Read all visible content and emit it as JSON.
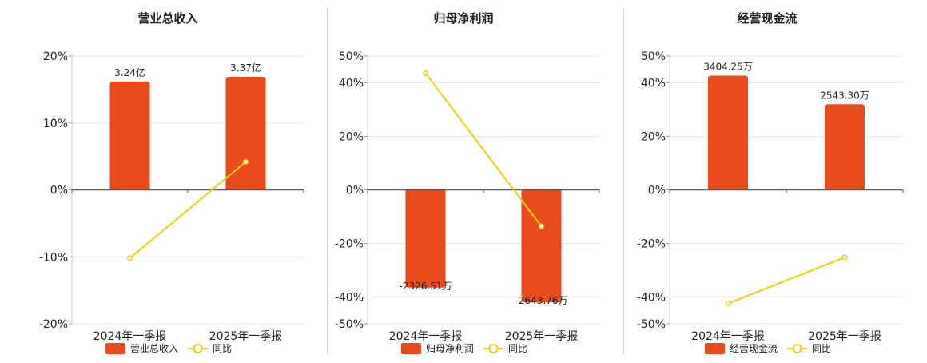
{
  "colors": {
    "bar": "#e84b1c",
    "line": "#f2cf0e",
    "zero_axis": "#555a66",
    "grid": "#e6e6e6",
    "divider": "#b0b0b0",
    "text": "#222222"
  },
  "chart_data": [
    {
      "type": "bar",
      "title": "营业总收入",
      "categories": [
        "2024年一季报",
        "2025年一季报"
      ],
      "ylim": [
        -20,
        20
      ],
      "yticks": [
        -20,
        -10,
        0,
        10,
        20
      ],
      "ytick_labels": [
        "-20%",
        "-10%",
        "0%",
        "10%",
        "20%"
      ],
      "series": [
        {
          "name": "营业总收入",
          "kind": "bar",
          "values": [
            16.2,
            16.9
          ],
          "data_labels": [
            "3.24亿",
            "3.37亿"
          ]
        },
        {
          "name": "同比",
          "kind": "line",
          "values": [
            -10.2,
            4.2
          ]
        }
      ],
      "legend": {
        "position": "bottom",
        "items": [
          "营业总收入",
          "同比"
        ]
      },
      "grid": true
    },
    {
      "type": "bar",
      "title": "归母净利润",
      "categories": [
        "2024年一季报",
        "2025年一季报"
      ],
      "ylim": [
        -50,
        50
      ],
      "yticks": [
        -50,
        -40,
        -20,
        0,
        20,
        40,
        50
      ],
      "ytick_labels": [
        "-50%",
        "-40%",
        "-20%",
        "0%",
        "20%",
        "40%",
        "50%"
      ],
      "series": [
        {
          "name": "归母净利润",
          "kind": "bar",
          "values": [
            -36.5,
            -42
          ],
          "data_labels": [
            "-2326.51万",
            "-2643.76万"
          ]
        },
        {
          "name": "同比",
          "kind": "line",
          "values": [
            43.6,
            -13.6
          ]
        }
      ],
      "legend": {
        "position": "bottom",
        "items": [
          "归母净利润",
          "同比"
        ]
      },
      "grid": true
    },
    {
      "type": "bar",
      "title": "经营现金流",
      "categories": [
        "2024年一季报",
        "2025年一季报"
      ],
      "ylim": [
        -50,
        50
      ],
      "yticks": [
        -50,
        -40,
        -20,
        0,
        20,
        40,
        50
      ],
      "ytick_labels": [
        "-50%",
        "-40%",
        "-20%",
        "0%",
        "20%",
        "40%",
        "50%"
      ],
      "series": [
        {
          "name": "经营现金流",
          "kind": "bar",
          "values": [
            42.7,
            32
          ],
          "data_labels": [
            "3404.25万",
            "2543.30万"
          ]
        },
        {
          "name": "同比",
          "kind": "line",
          "values": [
            -42.4,
            -25.2
          ]
        }
      ],
      "legend": {
        "position": "bottom",
        "items": [
          "经营现金流",
          "同比"
        ]
      },
      "grid": true
    }
  ]
}
